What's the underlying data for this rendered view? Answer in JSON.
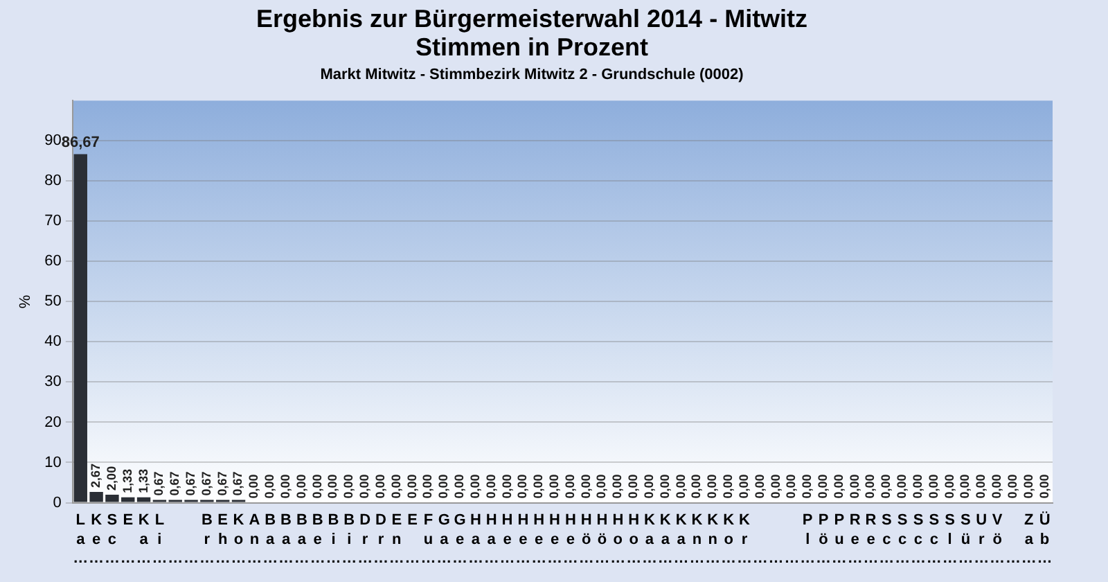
{
  "chart_data": {
    "type": "bar",
    "title": [
      "Ergebnis zur Bürgermeisterwahl 2014 - Mitwitz",
      "Stimmen in Prozent"
    ],
    "subtitle": "Markt Mitwitz - Stimmbezirk Mitwitz 2 - Grundschule (0002)",
    "ylabel": "%",
    "categories": [
      "La…",
      "Ke…",
      "Sc…",
      "E …",
      "Ka…",
      "Li…",
      "  …",
      "  …",
      "Br…",
      "Eh…",
      "Ko…",
      "An…",
      "Ba…",
      "Ba…",
      "Ba…",
      "Be…",
      "Bi…",
      "Bi…",
      "Dr…",
      "Dr…",
      "En…",
      "E …",
      "Fu…",
      "Ga…",
      "Ge…",
      "Ha…",
      "Ha…",
      "He…",
      "He…",
      "He…",
      "He…",
      "He…",
      "Hö…",
      "Hö…",
      "Ho…",
      "Ho…",
      "Ka…",
      "Ka…",
      "Ka…",
      "Kn…",
      "Kn…",
      "Ko…",
      "Kr…",
      "  …",
      "  …",
      "  …",
      "Pl…",
      "Pö…",
      "Pu…",
      "Re…",
      "Re…",
      "Sc…",
      "Sc…",
      "Sc…",
      "Sc…",
      "Sl…",
      "Sü…",
      "Ur…",
      "Vö…",
      "  …",
      "Za…",
      "Üb…"
    ],
    "values": [
      86.67,
      2.67,
      2.0,
      1.33,
      1.33,
      0.67,
      0.67,
      0.67,
      0.67,
      0.67,
      0.67,
      0,
      0,
      0,
      0,
      0,
      0,
      0,
      0,
      0,
      0,
      0,
      0,
      0,
      0,
      0,
      0,
      0,
      0,
      0,
      0,
      0,
      0,
      0,
      0,
      0,
      0,
      0,
      0,
      0,
      0,
      0,
      0,
      0,
      0,
      0,
      0,
      0,
      0,
      0,
      0,
      0,
      0,
      0,
      0,
      0,
      0,
      0,
      0,
      0,
      0,
      0
    ],
    "value_labels": [
      "86,67",
      "2,67",
      "2,00",
      "1,33",
      "1,33",
      "0,67",
      "0,67",
      "0,67",
      "0,67",
      "0,67",
      "0,67",
      "0,00",
      "0,00",
      "0,00",
      "0,00",
      "0,00",
      "0,00",
      "0,00",
      "0,00",
      "0,00",
      "0,00",
      "0,00",
      "0,00",
      "0,00",
      "0,00",
      "0,00",
      "0,00",
      "0,00",
      "0,00",
      "0,00",
      "0,00",
      "0,00",
      "0,00",
      "0,00",
      "0,00",
      "0,00",
      "0,00",
      "0,00",
      "0,00",
      "0,00",
      "0,00",
      "0,00",
      "0,00",
      "0,00",
      "0,00",
      "0,00",
      "0,00",
      "0,00",
      "0,00",
      "0,00",
      "0,00",
      "0,00",
      "0,00",
      "0,00",
      "0,00",
      "0,00",
      "0,00",
      "0,00",
      "0,00",
      "0,00",
      "0,00",
      "0,00"
    ],
    "colors": [
      "#2b2f36",
      "#2b2f36",
      "#2b2f36",
      "#2b2f36",
      "#2b2f36",
      "#2b2f36",
      "#2b2f36",
      "#2b2f36",
      "#2b2f36",
      "#2b2f36",
      "#2b2f36",
      "#2b2f36",
      "#2b2f36",
      "#2b2f36",
      "#2b2f36",
      "#2b2f36",
      "#2b2f36",
      "#2b2f36",
      "#2b2f36",
      "#2b2f36",
      "#2b2f36",
      "#2b2f36",
      "#2b2f36",
      "#2b2f36",
      "#2b2f36",
      "#2b2f36",
      "#2b2f36",
      "#2b2f36",
      "#2b2f36",
      "#2b2f36",
      "#2b2f36",
      "#2b2f36",
      "#2b2f36",
      "#2b2f36",
      "#2b2f36",
      "#2b2f36",
      "#2b2f36",
      "#2b2f36",
      "#2b2f36",
      "#2b2f36",
      "#2b2f36",
      "#2b2f36",
      "#2b2f36",
      "#2b2f36",
      "#2b2f36",
      "#2b2f36",
      "#2b2f36",
      "#2b2f36",
      "#2b2f36",
      "#2b2f36",
      "#2b2f36",
      "#2b2f36",
      "#2b2f36",
      "#2b2f36",
      "#2b2f36",
      "#2b2f36",
      "#2b2f36",
      "#2b2f36",
      "#2b2f36",
      "#2b2f36",
      "#2b2f36",
      "#ff33ff"
    ],
    "ylim": [
      0,
      100
    ],
    "yticks": [
      0,
      10,
      20,
      30,
      40,
      50,
      60,
      70,
      80,
      90
    ],
    "grid": "y",
    "legend": false
  }
}
